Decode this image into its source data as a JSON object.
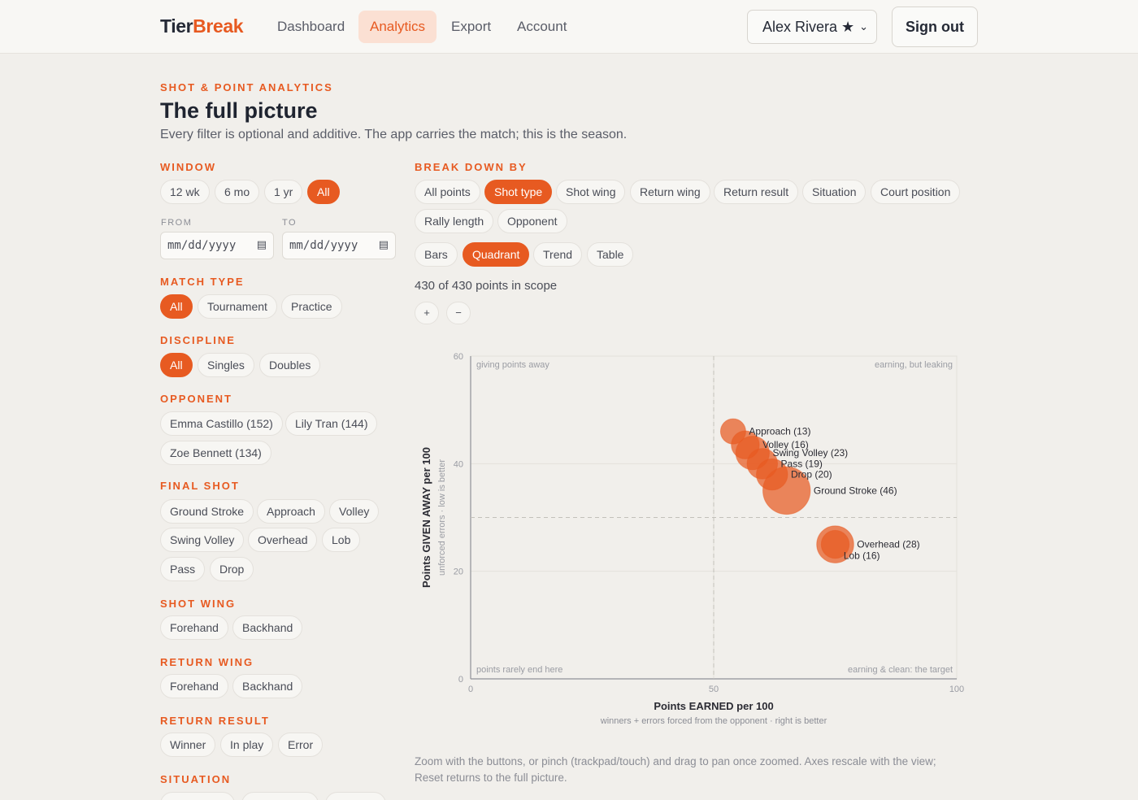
{
  "header": {
    "logo_a": "Tier",
    "logo_b": "Break",
    "nav": [
      "Dashboard",
      "Analytics",
      "Export",
      "Account"
    ],
    "active_nav": "Analytics",
    "user": "Alex Rivera ★",
    "sign_out": "Sign out"
  },
  "page": {
    "eyebrow": "SHOT & POINT ANALYTICS",
    "title": "The full picture",
    "subtitle": "Every filter is optional and additive. The app carries the match; this is the season."
  },
  "filters": {
    "window": {
      "label": "WINDOW",
      "options": [
        "12 wk",
        "6 mo",
        "1 yr",
        "All"
      ],
      "active": "All"
    },
    "from": {
      "label": "FROM",
      "placeholder": "mm/dd/yyyy"
    },
    "to": {
      "label": "TO",
      "placeholder": "mm/dd/yyyy"
    },
    "match_type": {
      "label": "MATCH TYPE",
      "options": [
        "All",
        "Tournament",
        "Practice"
      ],
      "active": "All"
    },
    "discipline": {
      "label": "DISCIPLINE",
      "options": [
        "All",
        "Singles",
        "Doubles"
      ],
      "active": "All"
    },
    "opponent": {
      "label": "OPPONENT",
      "options": [
        "Emma Castillo (152)",
        "Lily Tran (144)",
        "Zoe Bennett (134)"
      ]
    },
    "final_shot": {
      "label": "FINAL SHOT",
      "options": [
        "Ground Stroke",
        "Approach",
        "Volley",
        "Swing Volley",
        "Overhead",
        "Lob",
        "Pass",
        "Drop"
      ]
    },
    "shot_wing": {
      "label": "SHOT WING",
      "options": [
        "Forehand",
        "Backhand"
      ]
    },
    "return_wing": {
      "label": "RETURN WING",
      "options": [
        "Forehand",
        "Backhand"
      ]
    },
    "return_result": {
      "label": "RETURN RESULT",
      "options": [
        "Winner",
        "In play",
        "Error"
      ]
    },
    "situation": {
      "label": "SITUATION"
    }
  },
  "breakdown": {
    "label": "BREAK DOWN BY",
    "options": [
      "All points",
      "Shot type",
      "Shot wing",
      "Return wing",
      "Return result",
      "Situation",
      "Court position",
      "Rally length",
      "Opponent"
    ],
    "active": "Shot type"
  },
  "views": {
    "options": [
      "Bars",
      "Quadrant",
      "Trend",
      "Table"
    ],
    "active": "Quadrant"
  },
  "scope": "430 of 430 points in scope",
  "zoom": {
    "in": "+",
    "out": "−"
  },
  "chart_data": {
    "type": "scatter",
    "xlabel": "Points EARNED per 100",
    "xsub": "winners + errors forced from the opponent · right is better",
    "ylabel": "Points GIVEN AWAY per 100",
    "ysub": "unforced errors · low is better",
    "xlim": [
      0,
      100
    ],
    "ylim": [
      0,
      60
    ],
    "xticks": [
      0,
      50,
      100
    ],
    "yticks": [
      0,
      20,
      40,
      60
    ],
    "x_threshold": 50,
    "y_threshold": 30,
    "quadrants": {
      "top_left": "giving points away",
      "top_right": "earning, but leaking",
      "bottom_left": "points rarely end here",
      "bottom_right": "earning & clean: the target"
    },
    "points": [
      {
        "label": "Approach (13)",
        "count": 13,
        "x": 54,
        "y": 46
      },
      {
        "label": "Volley (16)",
        "count": 16,
        "x": 56.5,
        "y": 43.5
      },
      {
        "label": "Swing Volley (23)",
        "count": 23,
        "x": 58,
        "y": 42
      },
      {
        "label": "Pass (19)",
        "count": 19,
        "x": 60,
        "y": 40
      },
      {
        "label": "Drop (20)",
        "count": 20,
        "x": 62,
        "y": 38
      },
      {
        "label": "Ground Stroke (46)",
        "count": 46,
        "x": 65,
        "y": 35
      },
      {
        "label": "Overhead (28)",
        "count": 28,
        "x": 75,
        "y": 25
      },
      {
        "label": "Lob (16)",
        "count": 16,
        "x": 75,
        "y": 25
      }
    ],
    "grid": true,
    "color": "#e75a21"
  },
  "help": "Zoom with the buttons, or pinch (trackpad/touch) and drag to pan once zoomed. Axes rescale with the view; Reset returns to the full picture."
}
